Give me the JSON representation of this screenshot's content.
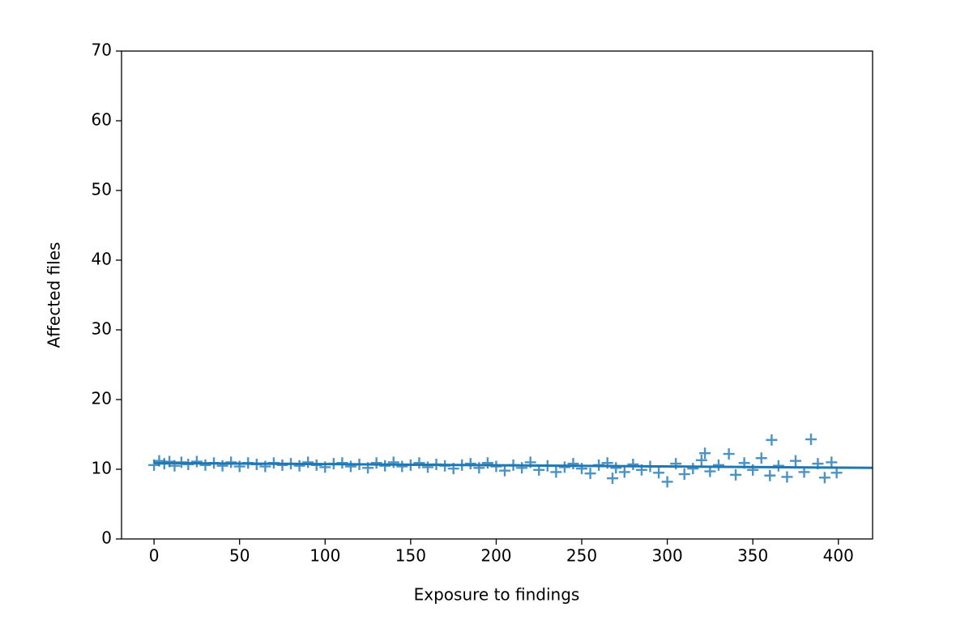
{
  "chart_data": {
    "type": "scatter",
    "xlabel": "Exposure to findings",
    "ylabel": "Affected files",
    "xlim": [
      -19,
      420
    ],
    "ylim": [
      0,
      70
    ],
    "xticks": [
      0,
      50,
      100,
      150,
      200,
      250,
      300,
      350,
      400
    ],
    "yticks": [
      0,
      10,
      20,
      30,
      40,
      50,
      60,
      70
    ],
    "grid": false,
    "series": [
      {
        "type": "scatter",
        "marker": "+",
        "color": "#1f77b4",
        "x": [
          0,
          3,
          6,
          9,
          12,
          16,
          20,
          25,
          30,
          35,
          40,
          45,
          50,
          55,
          60,
          65,
          70,
          75,
          80,
          85,
          90,
          95,
          100,
          105,
          110,
          115,
          120,
          125,
          130,
          135,
          140,
          145,
          150,
          155,
          160,
          165,
          170,
          175,
          180,
          185,
          190,
          195,
          200,
          205,
          210,
          215,
          220,
          225,
          230,
          235,
          240,
          245,
          250,
          255,
          260,
          265,
          268,
          270,
          275,
          280,
          285,
          290,
          295,
          300,
          305,
          310,
          315,
          320,
          322,
          325,
          330,
          336,
          340,
          345,
          350,
          355,
          360,
          361,
          365,
          370,
          375,
          380,
          384,
          388,
          392,
          396,
          399
        ],
        "values": [
          10.6,
          11.2,
          10.8,
          11.1,
          10.5,
          11.0,
          10.7,
          11.1,
          10.6,
          10.9,
          10.5,
          11.0,
          10.4,
          10.9,
          10.7,
          10.4,
          10.9,
          10.6,
          10.8,
          10.5,
          11.0,
          10.6,
          10.3,
          10.8,
          10.9,
          10.4,
          10.7,
          10.2,
          10.9,
          10.5,
          11.0,
          10.4,
          10.6,
          10.9,
          10.3,
          10.7,
          10.5,
          10.1,
          10.6,
          10.8,
          10.2,
          10.9,
          10.4,
          9.8,
          10.6,
          10.2,
          11.0,
          9.9,
          10.5,
          9.6,
          10.3,
          10.8,
          10.1,
          9.4,
          10.6,
          10.9,
          8.7,
          10.2,
          9.6,
          10.7,
          9.9,
          10.4,
          9.5,
          8.2,
          10.8,
          9.3,
          10.1,
          11.3,
          12.3,
          9.7,
          10.6,
          12.2,
          9.2,
          10.9,
          9.9,
          11.6,
          9.1,
          14.2,
          10.5,
          8.9,
          11.2,
          9.6,
          14.3,
          10.8,
          8.8,
          11.0,
          9.5
        ]
      },
      {
        "type": "line",
        "color": "#1f77b4",
        "x": [
          0,
          420
        ],
        "values": [
          10.9,
          10.2
        ]
      }
    ]
  }
}
